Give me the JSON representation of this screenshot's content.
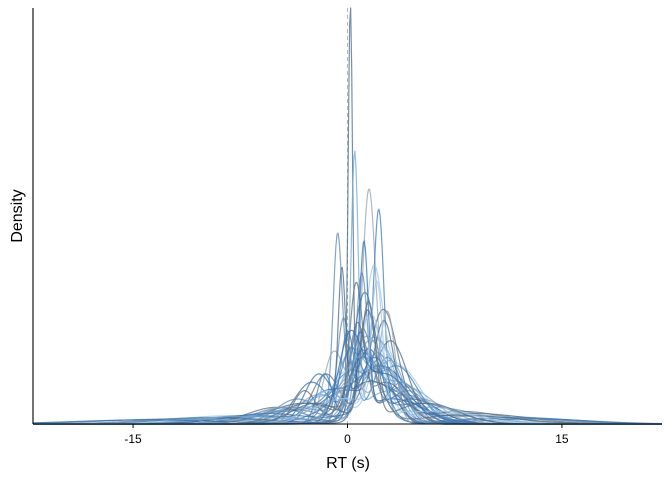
{
  "chart_data": {
    "type": "area",
    "xlabel": "RT (s)",
    "ylabel": "Density",
    "xlim": [
      -22,
      22
    ],
    "ylim": [
      0,
      1
    ],
    "xticks": [
      -15,
      0,
      15
    ],
    "xtick_labels": [
      "-15",
      "0",
      "15"
    ],
    "y_tick_labels_shown": false,
    "grid": false,
    "legend": "none",
    "reference_line": {
      "x": 0,
      "style": "dashed",
      "color": "#b0b0b0"
    },
    "series_count": 40,
    "colors": {
      "palette": [
        "#4a6a85",
        "#8fa3b4",
        "#5b87b5",
        "#3d79b8",
        "#9cc7e9",
        "#6ea6d6",
        "#5e6e7e",
        "#2f6db0"
      ],
      "axis": "#000000"
    },
    "series_components": [
      {
        "components": [
          [
            0.2,
            0.15,
            0.96
          ],
          [
            2.0,
            1.2,
            0.12
          ],
          [
            -3.0,
            2.5,
            0.05
          ]
        ]
      },
      {
        "components": [
          [
            1.5,
            0.45,
            0.52
          ],
          [
            4.0,
            2.0,
            0.09
          ],
          [
            -2.0,
            1.5,
            0.07
          ]
        ]
      },
      {
        "components": [
          [
            -0.7,
            0.3,
            0.38
          ],
          [
            1.0,
            1.4,
            0.16
          ],
          [
            6.0,
            3.0,
            0.04
          ]
        ]
      },
      {
        "components": [
          [
            2.2,
            0.35,
            0.45
          ],
          [
            0.5,
            1.5,
            0.12
          ],
          [
            -4.0,
            3.0,
            0.03
          ]
        ]
      },
      {
        "components": [
          [
            1.8,
            0.6,
            0.3
          ],
          [
            3.5,
            1.6,
            0.14
          ],
          [
            -8.0,
            4.0,
            0.02
          ]
        ]
      },
      {
        "components": [
          [
            0.5,
            0.25,
            0.62
          ],
          [
            3.0,
            2.0,
            0.08
          ]
        ]
      },
      {
        "components": [
          [
            2.5,
            1.0,
            0.27
          ],
          [
            -1.5,
            1.0,
            0.12
          ],
          [
            8.0,
            3.0,
            0.03
          ]
        ]
      },
      {
        "components": [
          [
            1.2,
            0.8,
            0.3
          ],
          [
            -2.5,
            1.2,
            0.1
          ],
          [
            5.0,
            2.5,
            0.05
          ]
        ]
      },
      {
        "components": [
          [
            3.0,
            1.2,
            0.2
          ],
          [
            0.8,
            0.5,
            0.18
          ],
          [
            -6.0,
            3.0,
            0.02
          ]
        ]
      },
      {
        "components": [
          [
            -1.0,
            0.7,
            0.16
          ],
          [
            2.0,
            1.3,
            0.2
          ],
          [
            10.0,
            4.0,
            0.02
          ]
        ]
      },
      {
        "components": [
          [
            1.0,
            0.4,
            0.34
          ],
          [
            -3.5,
            1.5,
            0.06
          ],
          [
            4.0,
            2.0,
            0.07
          ]
        ]
      },
      {
        "components": [
          [
            0.0,
            0.5,
            0.22
          ],
          [
            2.8,
            1.0,
            0.16
          ],
          [
            -10.0,
            4.0,
            0.015
          ]
        ]
      },
      {
        "components": [
          [
            1.6,
            0.9,
            0.26
          ],
          [
            -0.5,
            0.6,
            0.1
          ],
          [
            7.0,
            3.0,
            0.03
          ]
        ]
      },
      {
        "components": [
          [
            2.0,
            1.5,
            0.2
          ],
          [
            -2.0,
            2.0,
            0.06
          ]
        ]
      },
      {
        "components": [
          [
            0.7,
            0.6,
            0.24
          ],
          [
            3.8,
            1.2,
            0.1
          ],
          [
            -5.0,
            2.0,
            0.04
          ]
        ]
      },
      {
        "components": [
          [
            -2.0,
            1.0,
            0.12
          ],
          [
            1.5,
            1.0,
            0.18
          ],
          [
            12.0,
            4.0,
            0.015
          ]
        ]
      },
      {
        "components": [
          [
            2.6,
            0.7,
            0.22
          ],
          [
            0.0,
            1.8,
            0.08
          ],
          [
            -7.0,
            3.0,
            0.02
          ]
        ]
      },
      {
        "components": [
          [
            1.3,
            1.2,
            0.2
          ],
          [
            5.0,
            2.0,
            0.06
          ]
        ]
      },
      {
        "components": [
          [
            -0.3,
            0.4,
            0.2
          ],
          [
            2.2,
            1.6,
            0.14
          ],
          [
            -4.0,
            2.5,
            0.04
          ]
        ]
      },
      {
        "components": [
          [
            3.4,
            1.5,
            0.14
          ],
          [
            0.9,
            0.7,
            0.14
          ],
          [
            -12.0,
            5.0,
            0.012
          ]
        ]
      },
      {
        "components": [
          [
            1.9,
            0.5,
            0.22
          ],
          [
            -1.2,
            1.5,
            0.08
          ],
          [
            6.0,
            2.5,
            0.04
          ]
        ]
      },
      {
        "components": [
          [
            0.4,
            1.0,
            0.16
          ],
          [
            2.9,
            0.9,
            0.12
          ],
          [
            -3.0,
            3.0,
            0.04
          ]
        ]
      },
      {
        "components": [
          [
            -3.0,
            0.8,
            0.08
          ],
          [
            1.1,
            1.1,
            0.16
          ],
          [
            9.0,
            3.5,
            0.025
          ]
        ]
      },
      {
        "components": [
          [
            2.3,
            2.0,
            0.14
          ],
          [
            -1.8,
            1.2,
            0.06
          ]
        ]
      },
      {
        "components": [
          [
            1.4,
            0.6,
            0.26
          ],
          [
            4.5,
            1.8,
            0.06
          ],
          [
            -9.0,
            4.0,
            0.015
          ]
        ]
      },
      {
        "components": [
          [
            0.9,
            1.6,
            0.12
          ],
          [
            -4.5,
            2.0,
            0.04
          ],
          [
            3.2,
            1.0,
            0.08
          ]
        ]
      },
      {
        "components": [
          [
            2.1,
            1.1,
            0.17
          ],
          [
            -0.8,
            0.9,
            0.08
          ],
          [
            11.0,
            4.0,
            0.015
          ]
        ]
      },
      {
        "components": [
          [
            1.7,
            2.5,
            0.1
          ],
          [
            0.2,
            0.6,
            0.1
          ]
        ]
      },
      {
        "components": [
          [
            -1.4,
            1.3,
            0.08
          ],
          [
            2.4,
            0.8,
            0.18
          ],
          [
            7.5,
            3.0,
            0.025
          ]
        ]
      },
      {
        "components": [
          [
            3.6,
            1.8,
            0.1
          ],
          [
            1.0,
            0.9,
            0.12
          ],
          [
            -6.5,
            3.5,
            0.02
          ]
        ]
      },
      {
        "components": [
          [
            0.6,
            0.45,
            0.3
          ],
          [
            2.7,
            1.4,
            0.1
          ],
          [
            -2.8,
            1.8,
            0.05
          ]
        ]
      },
      {
        "components": [
          [
            1.15,
            0.3,
            0.4
          ],
          [
            3.2,
            2.2,
            0.06
          ],
          [
            -5.5,
            3.0,
            0.025
          ]
        ]
      },
      {
        "components": [
          [
            -0.4,
            0.25,
            0.32
          ],
          [
            1.6,
            1.9,
            0.1
          ],
          [
            8.5,
            3.5,
            0.02
          ]
        ]
      },
      {
        "components": [
          [
            2.8,
            0.55,
            0.26
          ],
          [
            0.3,
            1.2,
            0.1
          ],
          [
            -10.5,
            4.0,
            0.012
          ]
        ]
      },
      {
        "components": [
          [
            1.05,
            0.7,
            0.22
          ],
          [
            4.2,
            1.4,
            0.08
          ],
          [
            -3.8,
            2.2,
            0.035
          ]
        ]
      },
      {
        "components": [
          [
            -1.6,
            0.55,
            0.12
          ],
          [
            1.9,
            1.1,
            0.16
          ],
          [
            13.0,
            4.0,
            0.012
          ]
        ]
      },
      {
        "components": [
          [
            2.05,
            0.4,
            0.3
          ],
          [
            -0.2,
            2.3,
            0.06
          ],
          [
            6.5,
            2.6,
            0.03
          ]
        ]
      },
      {
        "components": [
          [
            0.85,
            1.3,
            0.16
          ],
          [
            3.3,
            0.8,
            0.12
          ],
          [
            -7.5,
            3.5,
            0.018
          ]
        ]
      },
      {
        "components": [
          [
            1.45,
            0.5,
            0.28
          ],
          [
            -2.2,
            1.7,
            0.05
          ],
          [
            5.5,
            2.2,
            0.05
          ]
        ]
      },
      {
        "components": [
          [
            0.15,
            0.8,
            0.18
          ],
          [
            2.6,
            1.7,
            0.12
          ],
          [
            -14.0,
            5.0,
            0.01
          ]
        ]
      }
    ]
  }
}
